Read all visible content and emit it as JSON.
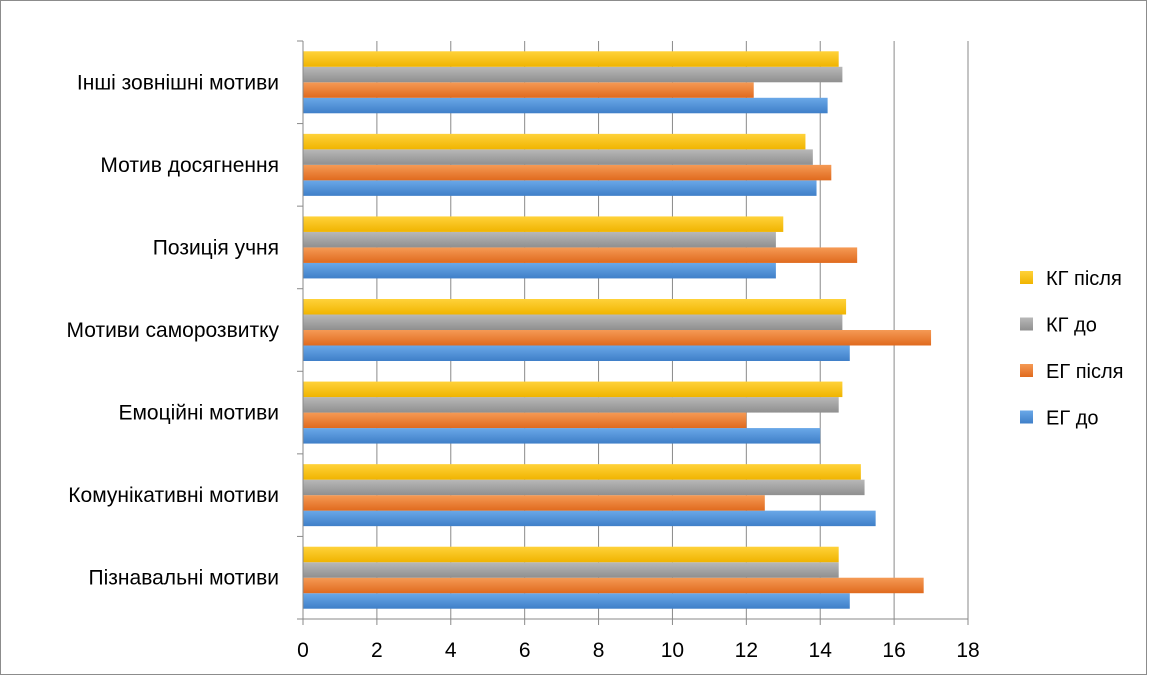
{
  "chart_data": {
    "type": "bar",
    "orientation": "horizontal",
    "categories": [
      "Пізнавальні мотиви",
      "Комунікативні мотиви",
      "Емоційні мотиви",
      "Мотиви саморозвитку",
      "Позиція учня",
      "Мотив досягнення",
      "Інші зовнішні мотиви"
    ],
    "series": [
      {
        "name": "ЕГ до",
        "color": "#4a90d9",
        "values": [
          14.8,
          15.5,
          14.0,
          14.8,
          12.8,
          13.9,
          14.2
        ]
      },
      {
        "name": "ЕГ після",
        "color": "#ed7d31",
        "values": [
          16.8,
          12.5,
          12.0,
          17.0,
          15.0,
          14.3,
          12.2
        ]
      },
      {
        "name": "КГ до",
        "color": "#a5a5a5",
        "values": [
          14.5,
          15.2,
          14.5,
          14.6,
          12.8,
          13.8,
          14.6
        ]
      },
      {
        "name": "КГ після",
        "color": "#ffc000",
        "values": [
          14.5,
          15.1,
          14.6,
          14.7,
          13.0,
          13.6,
          14.5
        ]
      }
    ],
    "xlim": [
      0,
      18
    ],
    "xticks": [
      "0",
      "2",
      "4",
      "6",
      "8",
      "10",
      "12",
      "14",
      "16",
      "18"
    ],
    "grid": true,
    "legend_position": "right",
    "legend_order": [
      "КГ після",
      "КГ до",
      "ЕГ після",
      "ЕГ до"
    ],
    "title": "",
    "xlabel": "",
    "ylabel": ""
  }
}
